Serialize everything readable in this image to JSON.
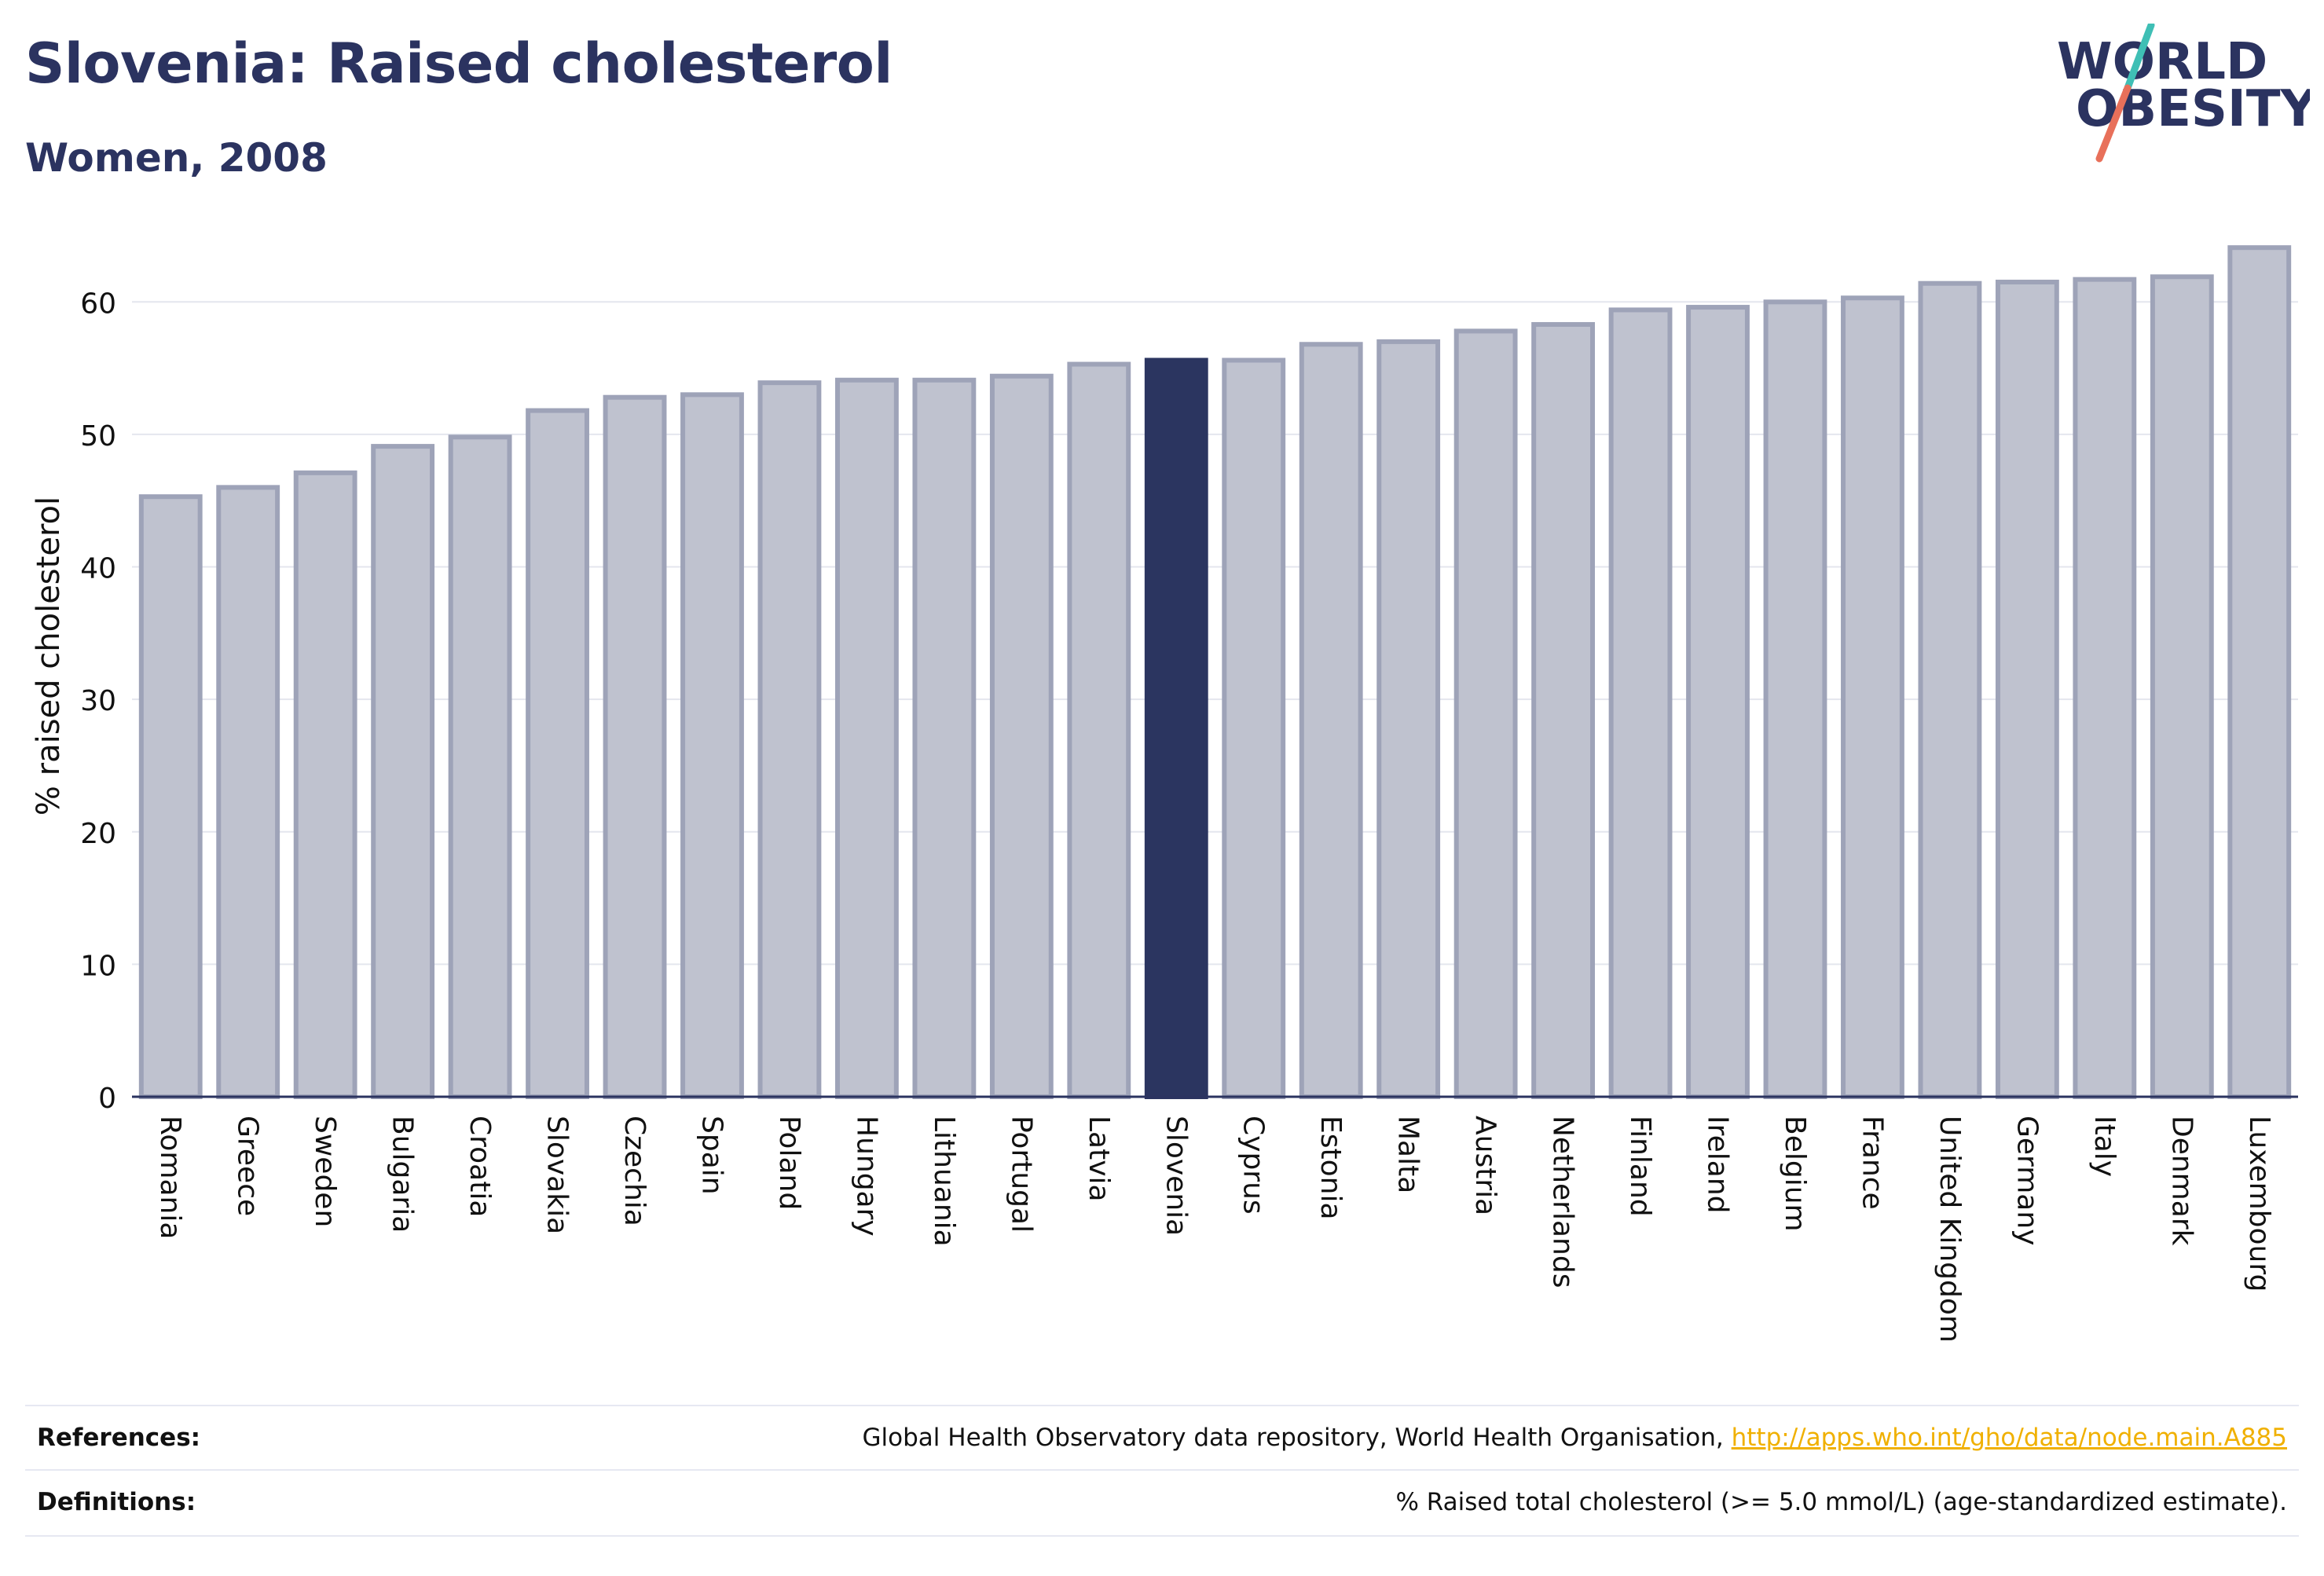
{
  "header": {
    "title": "Slovenia: Raised cholesterol",
    "subtitle": "Women, 2008"
  },
  "logo": {
    "line1": "WORLD",
    "line2": "OBESITY",
    "text_color": "#2b3360",
    "slash_color_top": "#3fbfb5",
    "slash_color_bottom": "#e8705a"
  },
  "chart_data": {
    "type": "bar",
    "ylabel": "% raised cholesterol",
    "ylim": [
      0,
      65
    ],
    "yticks": [
      0,
      10,
      20,
      30,
      40,
      50,
      60
    ],
    "grid": true,
    "highlight": "Slovenia",
    "bar_color": "#bfc2cf",
    "bar_edge_color": "#9ea3b8",
    "highlight_color": "#2b3560",
    "categories": [
      "Romania",
      "Greece",
      "Sweden",
      "Bulgaria",
      "Croatia",
      "Slovakia",
      "Czechia",
      "Spain",
      "Poland",
      "Hungary",
      "Lithuania",
      "Portugal",
      "Latvia",
      "Slovenia",
      "Cyprus",
      "Estonia",
      "Malta",
      "Austria",
      "Netherlands",
      "Finland",
      "Ireland",
      "Belgium",
      "France",
      "United Kingdom",
      "Germany",
      "Italy",
      "Denmark",
      "Luxembourg"
    ],
    "values": [
      45.3,
      46.0,
      47.1,
      49.1,
      49.8,
      51.8,
      52.8,
      53.0,
      53.9,
      54.1,
      54.1,
      54.4,
      55.3,
      55.6,
      55.6,
      56.8,
      57.0,
      57.8,
      58.3,
      59.4,
      59.6,
      60.0,
      60.3,
      61.4,
      61.5,
      61.7,
      61.9,
      64.1
    ]
  },
  "footer": {
    "references_label": "References:",
    "references_text": "Global Health Observatory data repository, World Health Organisation, ",
    "references_link": "http://apps.who.int/gho/data/node.main.A885",
    "definitions_label": "Definitions:",
    "definitions_text": "% Raised total cholesterol (>= 5.0 mmol/L) (age-standardized estimate)."
  }
}
